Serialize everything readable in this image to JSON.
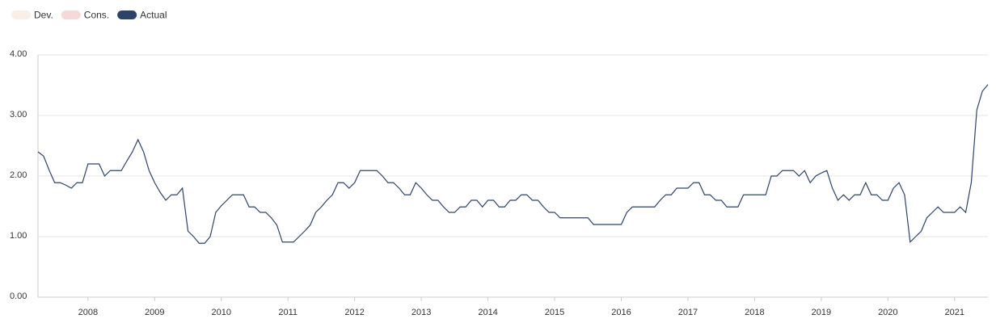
{
  "chart_data": {
    "type": "line",
    "legend_inactive": [
      {
        "name": "Dev.",
        "color": "#fbeee4"
      },
      {
        "name": "Cons.",
        "color": "#f6d9d7"
      }
    ],
    "categories": [
      null,
      null,
      null,
      null,
      null,
      null,
      null,
      null,
      null,
      "2008",
      null,
      null,
      null,
      null,
      null,
      null,
      null,
      null,
      null,
      null,
      null,
      "2009",
      null,
      null,
      null,
      null,
      null,
      null,
      null,
      null,
      null,
      null,
      null,
      "2010",
      null,
      null,
      null,
      null,
      null,
      null,
      null,
      null,
      null,
      null,
      null,
      "2011",
      null,
      null,
      null,
      null,
      null,
      null,
      null,
      null,
      null,
      null,
      null,
      "2012",
      null,
      null,
      null,
      null,
      null,
      null,
      null,
      null,
      null,
      null,
      null,
      "2013",
      null,
      null,
      null,
      null,
      null,
      null,
      null,
      null,
      null,
      null,
      null,
      "2014",
      null,
      null,
      null,
      null,
      null,
      null,
      null,
      null,
      null,
      null,
      null,
      "2015",
      null,
      null,
      null,
      null,
      null,
      null,
      null,
      null,
      null,
      null,
      null,
      "2016",
      null,
      null,
      null,
      null,
      null,
      null,
      null,
      null,
      null,
      null,
      null,
      "2017",
      null,
      null,
      null,
      null,
      null,
      null,
      null,
      null,
      null,
      null,
      null,
      "2018",
      null,
      null,
      null,
      null,
      null,
      null,
      null,
      null,
      null,
      null,
      null,
      "2019",
      null,
      null,
      null,
      null,
      null,
      null,
      null,
      null,
      null,
      null,
      null,
      "2020",
      null,
      null,
      null,
      null,
      null,
      null,
      null,
      null,
      null,
      null,
      null,
      "2021",
      null,
      null,
      null,
      null,
      null,
      null
    ],
    "series": [
      {
        "name": "Actual",
        "color": "#2d4369",
        "values": [
          2.4,
          2.33,
          2.1,
          1.89,
          1.89,
          1.85,
          1.8,
          1.89,
          1.89,
          2.2,
          2.2,
          2.2,
          2.0,
          2.09,
          2.09,
          2.09,
          2.25,
          2.4,
          2.6,
          2.4,
          2.09,
          1.89,
          1.73,
          1.6,
          1.69,
          1.69,
          1.8,
          1.09,
          1.0,
          0.89,
          0.89,
          1.0,
          1.4,
          1.51,
          1.6,
          1.69,
          1.69,
          1.69,
          1.49,
          1.49,
          1.4,
          1.4,
          1.31,
          1.19,
          0.91,
          0.91,
          0.91,
          1.0,
          1.09,
          1.19,
          1.4,
          1.49,
          1.6,
          1.69,
          1.89,
          1.89,
          1.8,
          1.89,
          2.09,
          2.09,
          2.09,
          2.09,
          2.0,
          1.89,
          1.89,
          1.8,
          1.69,
          1.69,
          1.89,
          1.8,
          1.69,
          1.6,
          1.6,
          1.49,
          1.4,
          1.4,
          1.49,
          1.49,
          1.6,
          1.6,
          1.49,
          1.6,
          1.6,
          1.49,
          1.49,
          1.6,
          1.6,
          1.69,
          1.69,
          1.6,
          1.6,
          1.49,
          1.4,
          1.4,
          1.31,
          1.31,
          1.31,
          1.31,
          1.31,
          1.31,
          1.2,
          1.2,
          1.2,
          1.2,
          1.2,
          1.2,
          1.4,
          1.49,
          1.49,
          1.49,
          1.49,
          1.49,
          1.6,
          1.69,
          1.69,
          1.8,
          1.8,
          1.8,
          1.89,
          1.89,
          1.69,
          1.69,
          1.6,
          1.6,
          1.49,
          1.49,
          1.49,
          1.69,
          1.69,
          1.69,
          1.69,
          1.69,
          2.0,
          2.0,
          2.09,
          2.09,
          2.09,
          2.0,
          2.09,
          1.89,
          2.0,
          2.05,
          2.09,
          1.8,
          1.6,
          1.69,
          1.6,
          1.69,
          1.69,
          1.89,
          1.69,
          1.69,
          1.6,
          1.6,
          1.8,
          1.89,
          1.69,
          0.91,
          1.0,
          1.09,
          1.31,
          1.4,
          1.49,
          1.4,
          1.4,
          1.4,
          1.49,
          1.4,
          1.89,
          3.09,
          3.4,
          3.51
        ]
      }
    ],
    "ylim": [
      0,
      4
    ],
    "yticks": [
      {
        "value": 0,
        "label": "0.00"
      },
      {
        "value": 1,
        "label": "1.00"
      },
      {
        "value": 2,
        "label": "2.00"
      },
      {
        "value": 3,
        "label": "3.00"
      },
      {
        "value": 4,
        "label": "4.00"
      }
    ],
    "grid": true
  }
}
